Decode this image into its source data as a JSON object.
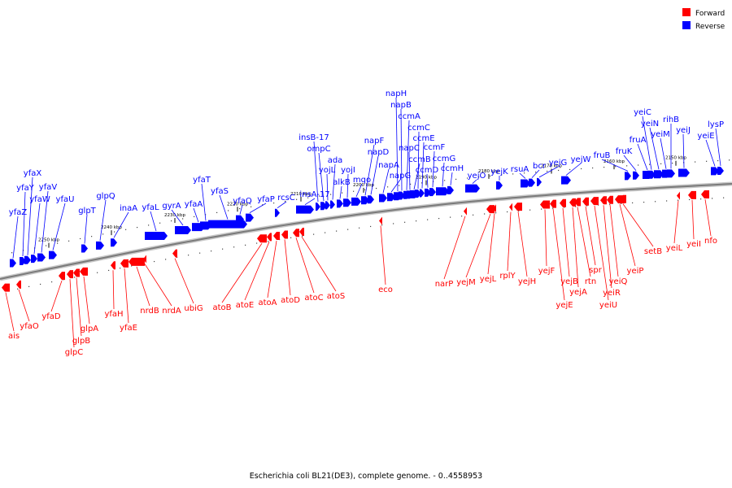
{
  "legend": [
    {
      "label": "Forward",
      "color": "#ff0000"
    },
    {
      "label": "Reverse",
      "color": "#0000ff"
    }
  ],
  "caption": "Escherichia coli BL21(DE3), complete genome. - 0..4558953",
  "colors": {
    "forward": "#ff0000",
    "reverse": "#0000ff",
    "backbone": "#7a7a7a"
  },
  "scale": {
    "unit": "kbp",
    "tick_labels": [
      "2250 kbp",
      "2240 kbp",
      "2230 kbp",
      "2220 kbp",
      "2210 kbp",
      "2200 kbp",
      "2190 kbp",
      "2180 kbp",
      "2170 kbp",
      "2160 kbp",
      "2150 kbp"
    ]
  },
  "genes_reverse": [
    "yfaZ",
    "yfaY",
    "yfaX",
    "yfaW",
    "yfaV",
    "yfaU",
    "glpT",
    "glpQ",
    "inaA",
    "yfaL",
    "gyrA",
    "yfaA",
    "yfaT",
    "yfaS",
    "yfaQ",
    "yfaP",
    "rcsC",
    "insA-17",
    "insB-17",
    "ompC",
    "yojL",
    "ada",
    "alkB",
    "yojI",
    "mqo",
    "napF",
    "napD",
    "napA",
    "napG",
    "napH",
    "napB",
    "ccmA",
    "napC",
    "ccmB",
    "ccmC",
    "ccmE",
    "ccmD",
    "ccmF",
    "ccmG",
    "ccmH",
    "yejO",
    "yejK",
    "rsuA",
    "bcr",
    "yejG",
    "yejW",
    "fruB",
    "fruK",
    "fruA",
    "yeiC",
    "yeiN",
    "yeiM",
    "rihB",
    "yeiJ",
    "yeiE",
    "lysP"
  ],
  "genes_forward": [
    "ais",
    "yfaO",
    "yfaD",
    "glpC",
    "glpB",
    "glpA",
    "yfaH",
    "yfaE",
    "nrdB",
    "nrdA",
    "ubiG",
    "atoB",
    "atoE",
    "atoA",
    "atoD",
    "atoC",
    "atoS",
    "eco",
    "narP",
    "yejM",
    "yejL",
    "rplY",
    "yejH",
    "yejF",
    "yejE",
    "yejB",
    "yejA",
    "rtn",
    "spr",
    "yeiU",
    "yeiR",
    "yeiQ",
    "yeiP",
    "setB",
    "yeiL",
    "yeiI",
    "nfo"
  ]
}
